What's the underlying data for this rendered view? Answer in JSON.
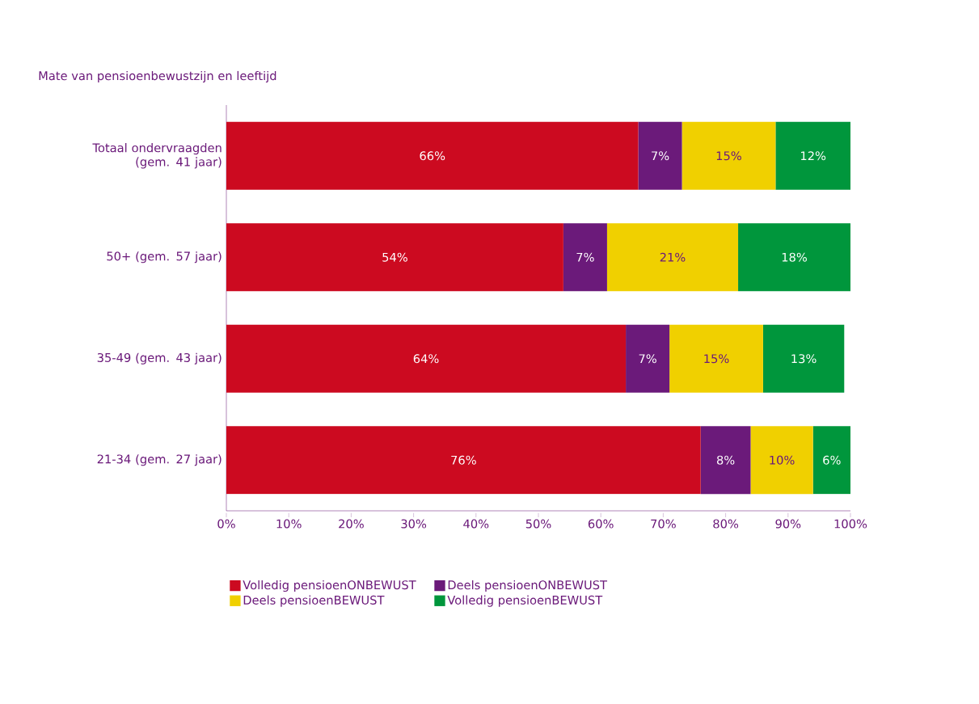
{
  "chart_data": {
    "type": "bar",
    "orientation": "horizontal",
    "stacked": true,
    "title": "Mate van pensioenbewustzijn en leeftijd",
    "categories": [
      "Totaal ondervraagden (gem. 41 jaar)",
      "50+ (gem. 57 jaar)",
      "35-49 (gem. 43 jaar)",
      "21-34 (gem. 27 jaar)"
    ],
    "series": [
      {
        "name": "Volledig pensioenONBEWUST",
        "color": "#cc0a20",
        "values": [
          66,
          54,
          64,
          76
        ],
        "value_labels": [
          "66%",
          "54%",
          "64%",
          "76%"
        ]
      },
      {
        "name": "Deels pensioenONBEWUST",
        "color": "#6b1a7a",
        "values": [
          7,
          7,
          7,
          8
        ],
        "value_labels": [
          "7%",
          "7%",
          "7%",
          "8%"
        ]
      },
      {
        "name": "Deels pensioenBEWUST",
        "color": "#f0d000",
        "values": [
          15,
          21,
          15,
          10
        ],
        "value_labels": [
          "15%",
          "21%",
          "15%",
          "10%"
        ]
      },
      {
        "name": "Volledig pensioenBEWUST",
        "color": "#00963c",
        "values": [
          12,
          18,
          13,
          6
        ],
        "value_labels": [
          "12%",
          "18%",
          "13%",
          "6%"
        ]
      }
    ],
    "xlim": [
      0,
      100
    ],
    "xticks": [
      {
        "value": 0,
        "label": "0%"
      },
      {
        "value": 10,
        "label": "10%"
      },
      {
        "value": 20,
        "label": "20%"
      },
      {
        "value": 30,
        "label": "30%"
      },
      {
        "value": 40,
        "label": "40%"
      },
      {
        "value": 50,
        "label": "50%"
      },
      {
        "value": 60,
        "label": "60%"
      },
      {
        "value": 70,
        "label": "70%"
      },
      {
        "value": 80,
        "label": "80%"
      },
      {
        "value": 90,
        "label": "90%"
      },
      {
        "value": 100,
        "label": "100%"
      }
    ],
    "grid": false,
    "legend": "bottom"
  }
}
